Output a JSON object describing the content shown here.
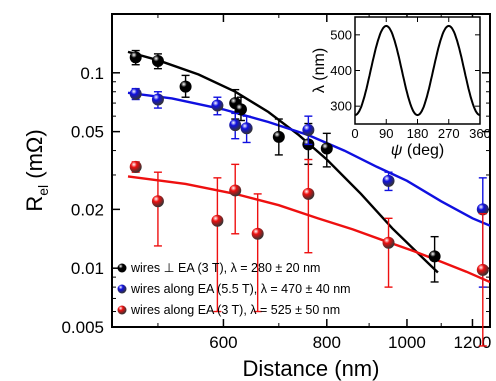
{
  "chart_data": [
    {
      "type": "scatter",
      "xlabel": "Distance (nm)",
      "ylabel_main": "R",
      "ylabel_sub": "el",
      "ylabel_unit": " (mΩ)",
      "yscale": "log",
      "xscale": "log",
      "xlim": [
        440,
        1260
      ],
      "ylim": [
        0.005,
        0.2
      ],
      "x_ticks": [
        600,
        800,
        1000,
        1200
      ],
      "x_tick_labels": [
        "600",
        "800",
        "1000",
        "1200"
      ],
      "y_ticks": [
        0.005,
        0.01,
        0.02,
        0.05,
        0.1
      ],
      "y_tick_labels": [
        "0.005",
        "0.01",
        "0.02",
        "0.05",
        "0.1"
      ],
      "legend_position": "bottom-left",
      "series": [
        {
          "name": "wires ⊥ EA (3 T), λ = 280 ± 20 nm",
          "color": "#000000",
          "x": [
            470,
            500,
            540,
            620,
            630,
            700,
            760,
            800,
            1080
          ],
          "y": [
            0.12,
            0.115,
            0.085,
            0.07,
            0.065,
            0.047,
            0.043,
            0.041,
            0.0115
          ],
          "yerr_low": [
            0.11,
            0.105,
            0.075,
            0.058,
            0.057,
            0.038,
            0.034,
            0.033,
            0.0085
          ],
          "yerr_high": [
            0.13,
            0.125,
            0.097,
            0.082,
            0.075,
            0.058,
            0.055,
            0.049,
            0.0145
          ],
          "fit": [
            [
              460,
              0.128
            ],
            [
              500,
              0.116
            ],
            [
              560,
              0.098
            ],
            [
              620,
              0.08
            ],
            [
              680,
              0.063
            ],
            [
              740,
              0.048
            ],
            [
              800,
              0.036
            ],
            [
              880,
              0.024
            ],
            [
              960,
              0.016
            ],
            [
              1040,
              0.0115
            ],
            [
              1090,
              0.0095
            ]
          ]
        },
        {
          "name": "wires along EA (5.5 T), λ = 470 ± 40 nm",
          "color": "#1010e0",
          "x": [
            470,
            500,
            590,
            620,
            640,
            760,
            950,
            1235
          ],
          "y": [
            0.078,
            0.073,
            0.068,
            0.054,
            0.052,
            0.051,
            0.028,
            0.02
          ],
          "yerr_low": [
            0.073,
            0.066,
            0.061,
            0.046,
            0.044,
            0.043,
            0.025,
            0.008
          ],
          "yerr_high": [
            0.083,
            0.08,
            0.075,
            0.062,
            0.06,
            0.06,
            0.031,
            0.029
          ],
          "fit": [
            [
              460,
              0.079
            ],
            [
              520,
              0.074
            ],
            [
              600,
              0.065
            ],
            [
              680,
              0.056
            ],
            [
              760,
              0.048
            ],
            [
              840,
              0.04
            ],
            [
              920,
              0.033
            ],
            [
              1000,
              0.028
            ],
            [
              1100,
              0.022
            ],
            [
              1200,
              0.018
            ],
            [
              1260,
              0.0165
            ]
          ]
        },
        {
          "name": "wires along EA (3 T), λ = 525 ± 50 nm",
          "color": "#ee1010",
          "x": [
            470,
            500,
            590,
            620,
            660,
            760,
            950,
            1235
          ],
          "y": [
            0.033,
            0.022,
            0.0175,
            0.025,
            0.015,
            0.024,
            0.0135,
            0.0098
          ],
          "yerr_low": [
            0.031,
            0.013,
            0.006,
            0.015,
            0.006,
            0.012,
            0.008,
            0.004
          ],
          "yerr_high": [
            0.035,
            0.031,
            0.029,
            0.034,
            0.024,
            0.036,
            0.018,
            0.019
          ],
          "fit": [
            [
              460,
              0.0295
            ],
            [
              540,
              0.027
            ],
            [
              620,
              0.024
            ],
            [
              700,
              0.021
            ],
            [
              780,
              0.018
            ],
            [
              860,
              0.0158
            ],
            [
              940,
              0.0138
            ],
            [
              1020,
              0.0122
            ],
            [
              1100,
              0.0108
            ],
            [
              1180,
              0.0096
            ],
            [
              1260,
              0.0085
            ]
          ]
        }
      ]
    },
    {
      "type": "line",
      "xlabel_symbol": "ψ",
      "xlabel_unit": " (deg)",
      "ylabel_symbol": "λ",
      "ylabel_unit": " (nm)",
      "xlim": [
        0,
        360
      ],
      "ylim": [
        250,
        550
      ],
      "x_ticks": [
        0,
        90,
        180,
        270,
        360
      ],
      "x_tick_labels": [
        "0",
        "90",
        "180",
        "270",
        "360"
      ],
      "y_ticks": [
        300,
        400,
        500
      ],
      "y_tick_labels": [
        "300",
        "400",
        "500"
      ],
      "curve": "λ(ψ) = 400 − 125·cos(2ψ)",
      "min_value": 275,
      "max_value": 525
    }
  ]
}
